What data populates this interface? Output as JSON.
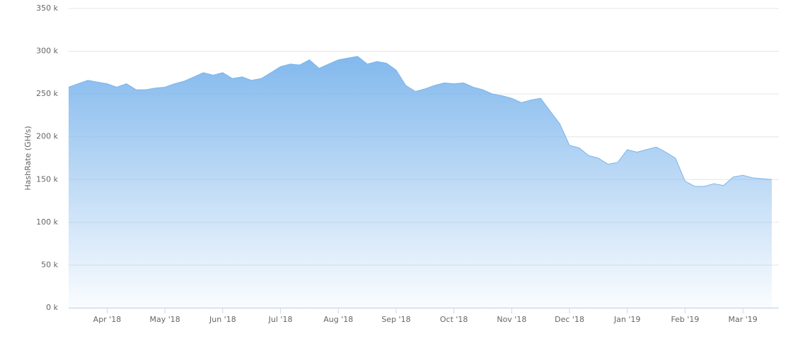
{
  "chart_data": {
    "type": "area",
    "y_label": "HashRate (GH/s)",
    "color": "#7cb5ec",
    "categories": [
      null,
      null,
      null,
      null,
      "Apr '18",
      null,
      null,
      null,
      null,
      null,
      "May '18",
      null,
      null,
      null,
      null,
      null,
      "Jun '18",
      null,
      null,
      null,
      null,
      null,
      "Jul '18",
      null,
      null,
      null,
      null,
      null,
      "Aug '18",
      null,
      null,
      null,
      null,
      null,
      "Sep '18",
      null,
      null,
      null,
      null,
      null,
      "Oct '18",
      null,
      null,
      null,
      null,
      null,
      "Nov '18",
      null,
      null,
      null,
      null,
      null,
      "Dec '18",
      null,
      null,
      null,
      null,
      null,
      "Jan '19",
      null,
      null,
      null,
      null,
      null,
      "Feb '19",
      null,
      null,
      null,
      null,
      null,
      "Mar '19",
      null,
      null,
      null
    ],
    "values": [
      258000,
      262000,
      266000,
      264000,
      262000,
      258000,
      262000,
      255000,
      255000,
      257000,
      258000,
      262000,
      265000,
      270000,
      275000,
      272000,
      275000,
      268000,
      270000,
      266000,
      268000,
      275000,
      282000,
      285000,
      284000,
      290000,
      280000,
      285000,
      290000,
      292000,
      294000,
      285000,
      288000,
      286000,
      278000,
      260000,
      253000,
      256000,
      260000,
      263000,
      262000,
      263000,
      258000,
      255000,
      250000,
      248000,
      245000,
      240000,
      243000,
      245000,
      230000,
      215000,
      190000,
      187000,
      178000,
      175000,
      168000,
      170000,
      185000,
      182000,
      185000,
      188000,
      182000,
      175000,
      148000,
      142000,
      142000,
      145000,
      143000,
      153000,
      155000,
      152000,
      151000,
      150000
    ],
    "ylim": [
      0,
      350000
    ],
    "yticks": [
      {
        "value": 0,
        "label": "0 k"
      },
      {
        "value": 50000,
        "label": "50 k"
      },
      {
        "value": 100000,
        "label": "100 k"
      },
      {
        "value": 150000,
        "label": "150 k"
      },
      {
        "value": 200000,
        "label": "200 k"
      },
      {
        "value": 250000,
        "label": "250 k"
      },
      {
        "value": 300000,
        "label": "300 k"
      },
      {
        "value": 350000,
        "label": "350 k"
      }
    ],
    "grid": true
  }
}
